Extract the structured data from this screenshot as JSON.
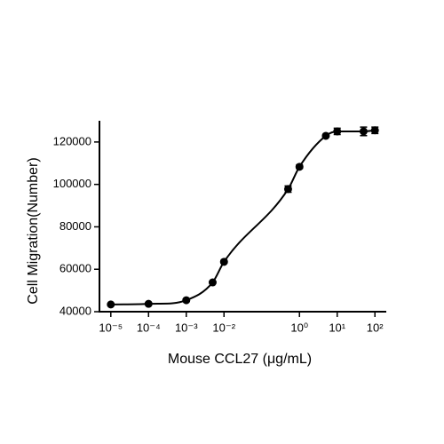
{
  "chart_data": {
    "type": "scatter",
    "x_label": "Mouse CCL27 (μg/mL)",
    "y_label": "Cell Migration(Number)",
    "x": [
      1e-05,
      0.0001,
      0.001,
      0.005,
      0.01,
      0.5,
      1,
      5,
      10,
      50,
      100
    ],
    "series": [
      {
        "color": "#000000",
        "values": [
          43400,
          43700,
          45400,
          53800,
          63500,
          97800,
          108300,
          122900,
          125000,
          125000,
          125500
        ],
        "errors": [
          400,
          400,
          400,
          500,
          500,
          1500,
          800,
          600,
          1500,
          2000,
          1500
        ]
      }
    ],
    "xscale": "log",
    "xlim": [
      5e-06,
      200
    ],
    "xticks": [
      {
        "value": 1e-05,
        "label": "10⁻⁵"
      },
      {
        "value": 0.0001,
        "label": "10⁻⁴"
      },
      {
        "value": 0.001,
        "label": "10⁻³"
      },
      {
        "value": 0.01,
        "label": "10⁻²"
      },
      {
        "value": 1,
        "label": "10⁰"
      },
      {
        "value": 10,
        "label": "10¹"
      },
      {
        "value": 100,
        "label": "10²"
      }
    ],
    "ylim": [
      40000,
      130000
    ],
    "yticks": [
      40000,
      60000,
      80000,
      100000,
      120000
    ],
    "fit_curve": true
  }
}
